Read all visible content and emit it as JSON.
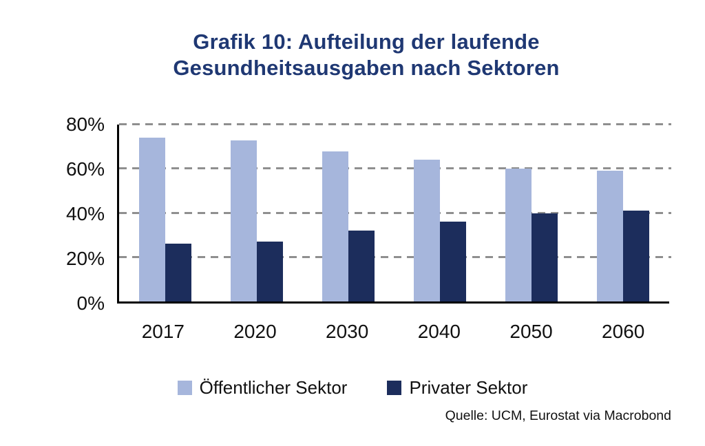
{
  "title": {
    "lines": [
      "Grafik 10: Aufteilung der laufende",
      "Gesundheitsausgaben nach Sektoren"
    ],
    "color": "#1f3873"
  },
  "source": "Quelle: UCM, Eurostat via Macrobond",
  "legend": [
    {
      "label": "Öffentlicher Sektor",
      "color": "#a6b6dc"
    },
    {
      "label": "Privater Sektor",
      "color": "#1c2d5c"
    }
  ],
  "chart_data": {
    "type": "bar",
    "title": "Grafik 10: Aufteilung der laufende Gesundheitsausgaben nach Sektoren",
    "categories": [
      "2017",
      "2020",
      "2030",
      "2040",
      "2050",
      "2060"
    ],
    "series": [
      {
        "name": "Öffentlicher Sektor",
        "color": "#a6b6dc",
        "values": [
          74,
          73,
          68,
          64,
          60,
          59
        ]
      },
      {
        "name": "Privater Sektor",
        "color": "#1c2d5c",
        "values": [
          26,
          27,
          32,
          36,
          40,
          41
        ]
      }
    ],
    "xlabel": "",
    "ylabel": "",
    "ylim": [
      0,
      80
    ],
    "yticks": [
      0,
      20,
      40,
      60,
      80
    ],
    "ytick_labels": [
      "0%",
      "20%",
      "40%",
      "60%",
      "80%"
    ],
    "grid": "horizontal-dashed",
    "grid_color": "#8f8f8f",
    "legend_position": "bottom",
    "source": "Quelle: UCM, Eurostat via Macrobond"
  }
}
